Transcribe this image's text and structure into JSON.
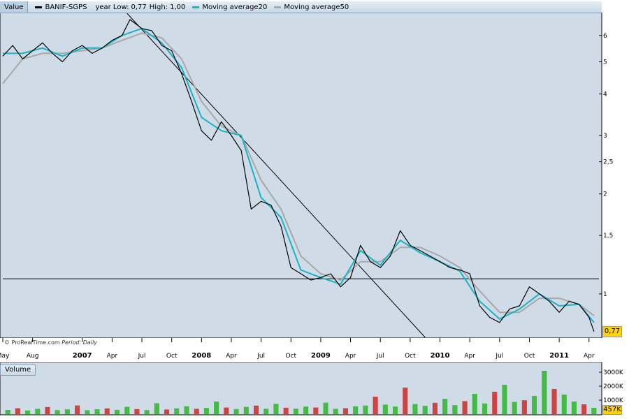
{
  "legend": {
    "value_label": "Value",
    "series_name": "BANIF-SGPS",
    "year_low_label": "year Low:",
    "year_low": "0,77",
    "year_high_label": "High:",
    "year_high": "1,00",
    "ma20_label": "Moving average20",
    "ma50_label": "Moving average50"
  },
  "copyright": {
    "text": "© ProRealTime.com",
    "period_label": "Period:",
    "period": "Daily"
  },
  "last_price": "0,77",
  "volume": {
    "label": "Volume",
    "last_value": "457K",
    "ticks": [
      "3000K",
      "2000K",
      "1000K"
    ]
  },
  "colors": {
    "price": "#000000",
    "ma20": "#19b3c3",
    "ma50": "#a8a8a8",
    "plot_bg": "#cfdbe7",
    "vol_up": "#44bb44",
    "vol_down": "#cc4444"
  },
  "chart_data": {
    "type": "line",
    "scale": "log",
    "ylim": [
      0.74,
      7.0
    ],
    "y_ticks": [
      "6",
      "5",
      "4",
      "3",
      "2,5",
      "2",
      "1,5",
      "1"
    ],
    "y_tick_values": [
      6,
      5,
      4,
      3,
      2.5,
      2,
      1.5,
      1
    ],
    "x_ticks": [
      "May",
      "Aug",
      "2007",
      "Apr",
      "Jul",
      "Oct",
      "2008",
      "Apr",
      "Jul",
      "Oct",
      "2009",
      "Apr",
      "Jul",
      "Oct",
      "2010",
      "Apr",
      "Jul",
      "Oct",
      "2011",
      "Apr"
    ],
    "x_tick_bold": [
      false,
      false,
      true,
      false,
      false,
      false,
      true,
      false,
      false,
      false,
      true,
      false,
      false,
      false,
      true,
      false,
      false,
      false,
      true,
      false
    ],
    "x_tick_months": [
      0,
      3,
      8,
      11,
      14,
      17,
      20,
      23,
      26,
      29,
      32,
      35,
      38,
      41,
      44,
      47,
      50,
      53,
      56,
      59
    ],
    "x_range_months": [
      0,
      60
    ],
    "series": [
      {
        "name": "BANIF-SGPS",
        "x": [
          0,
          1,
          2,
          3,
          4,
          5,
          6,
          7,
          8,
          9,
          10,
          11,
          12,
          12.8,
          14,
          15,
          16,
          17,
          18,
          19,
          20,
          21,
          22,
          23,
          24,
          25,
          26,
          27,
          28,
          29,
          30,
          31,
          32,
          33,
          34,
          35,
          36,
          37,
          38,
          39,
          40,
          41,
          42,
          43,
          44,
          45,
          46,
          47,
          48,
          49,
          50,
          51,
          52,
          53,
          54,
          55,
          56,
          57,
          58,
          59,
          59.5
        ],
        "values": [
          5.2,
          5.6,
          5.1,
          5.4,
          5.7,
          5.3,
          5.0,
          5.4,
          5.6,
          5.3,
          5.5,
          5.8,
          6.0,
          6.7,
          6.3,
          6.2,
          5.6,
          5.4,
          4.6,
          3.8,
          3.1,
          2.9,
          3.3,
          3.0,
          2.7,
          1.8,
          1.9,
          1.85,
          1.6,
          1.2,
          1.15,
          1.1,
          1.12,
          1.15,
          1.05,
          1.12,
          1.4,
          1.25,
          1.2,
          1.3,
          1.55,
          1.4,
          1.35,
          1.3,
          1.25,
          1.2,
          1.18,
          1.15,
          0.92,
          0.85,
          0.82,
          0.9,
          0.92,
          1.05,
          1.0,
          0.95,
          0.88,
          0.95,
          0.93,
          0.85,
          0.77
        ]
      },
      {
        "name": "Moving average20",
        "x": [
          0,
          2,
          4,
          6,
          8,
          10,
          12,
          14,
          16,
          18,
          20,
          22,
          24,
          26,
          28,
          30,
          32,
          34,
          36,
          38,
          40,
          42,
          44,
          46,
          48,
          50,
          52,
          54,
          56,
          58,
          59.5
        ],
        "values": [
          5.3,
          5.3,
          5.5,
          5.2,
          5.5,
          5.5,
          6.0,
          6.3,
          5.7,
          4.8,
          3.4,
          3.1,
          3.0,
          1.95,
          1.7,
          1.18,
          1.12,
          1.07,
          1.35,
          1.22,
          1.45,
          1.33,
          1.25,
          1.17,
          0.95,
          0.84,
          0.9,
          1.0,
          0.92,
          0.93,
          0.82
        ]
      },
      {
        "name": "Moving average50",
        "x": [
          0,
          2,
          4,
          6,
          8,
          10,
          12,
          14,
          16,
          18,
          20,
          22,
          24,
          26,
          28,
          30,
          32,
          34,
          36,
          38,
          40,
          42,
          44,
          46,
          48,
          50,
          52,
          54,
          56,
          58,
          59.5
        ],
        "values": [
          4.3,
          5.1,
          5.3,
          5.3,
          5.4,
          5.5,
          5.8,
          6.1,
          5.9,
          5.1,
          3.8,
          3.2,
          3.0,
          2.2,
          1.8,
          1.3,
          1.15,
          1.1,
          1.25,
          1.25,
          1.38,
          1.38,
          1.3,
          1.2,
          1.02,
          0.88,
          0.88,
          0.97,
          0.97,
          0.93,
          0.86
        ]
      }
    ],
    "trendlines": [
      {
        "x": [
          12.5,
          42.5
        ],
        "values": [
          7.0,
          0.74
        ]
      },
      {
        "x": [
          0,
          60
        ],
        "values": [
          1.11,
          1.11
        ]
      }
    ],
    "volume_range_k": [
      0,
      3500
    ],
    "volume_k": [
      300,
      420,
      260,
      380,
      510,
      290,
      340,
      620,
      280,
      350,
      410,
      300,
      520,
      360,
      290,
      780,
      330,
      410,
      560,
      380,
      440,
      900,
      470,
      360,
      520,
      610,
      380,
      730,
      460,
      390,
      540,
      470,
      820,
      380,
      420,
      560,
      610,
      1250,
      680,
      540,
      1900,
      720,
      590,
      810,
      1100,
      640,
      930,
      1450,
      760,
      1600,
      2100,
      870,
      990,
      1300,
      3100,
      1800,
      1400,
      900,
      700,
      457
    ]
  }
}
